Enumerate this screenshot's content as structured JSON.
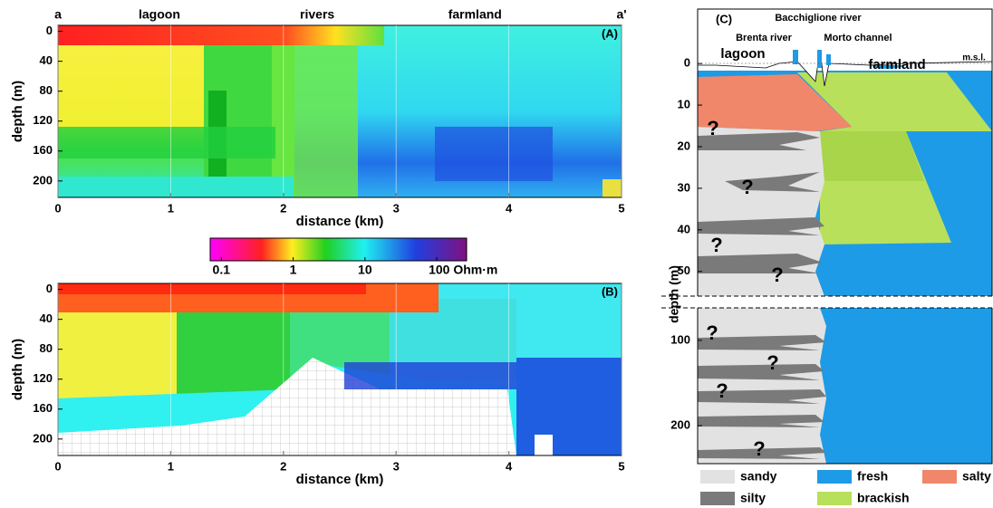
{
  "chart_data": [
    {
      "type": "heatmap",
      "panel": "(A)",
      "top_labels": [
        "a",
        "lagoon",
        "rivers",
        "farmland",
        "a'"
      ],
      "xlabel": "distance (km)",
      "ylabel": "depth (m)",
      "xlim": [
        0,
        5
      ],
      "xticks": [
        0,
        1,
        2,
        3,
        4,
        5
      ],
      "ylim": [
        -8,
        222
      ],
      "yticks": [
        0,
        40,
        80,
        120,
        160,
        200
      ]
    },
    {
      "type": "heatmap",
      "panel": "(B)",
      "xlabel": "distance (km)",
      "ylabel": "depth (m)",
      "xlim": [
        0,
        5
      ],
      "xticks": [
        0,
        1,
        2,
        3,
        4,
        5
      ],
      "ylim": [
        -8,
        222
      ],
      "yticks": [
        0,
        40,
        80,
        120,
        160,
        200
      ]
    },
    {
      "type": "colorbar",
      "log": true,
      "clim": [
        0.07,
        260
      ],
      "ticks": [
        0.1,
        1,
        10,
        {
          "value": 100,
          "label": "100 Ohm·m"
        }
      ]
    },
    {
      "type": "cross-section",
      "panel": "(C)",
      "annotations": [
        "Brenta river",
        "Bacchiglione river",
        "Morto channel",
        "lagoon",
        "farmland",
        "m.s.l."
      ],
      "ylabel": "depth (m)",
      "ylim_upper": [
        -7,
        55.5
      ],
      "yticks_upper": [
        0,
        10,
        20,
        30,
        40,
        50
      ],
      "ylim_lower": [
        62,
        237
      ],
      "yticks_lower": [
        100,
        200
      ],
      "legend": [
        {
          "name": "sandy",
          "color": "#e2e2e2"
        },
        {
          "name": "fresh",
          "color": "#1e9be6"
        },
        {
          "name": "salty",
          "color": "#f0876a"
        },
        {
          "name": "silty",
          "color": "#7a7a7a"
        },
        {
          "name": "brackish",
          "color": "#b8e05a"
        }
      ],
      "question_marks": [
        {
          "text": "?",
          "color": "#f05a28"
        },
        {
          "text": "?",
          "color": "#f05a28"
        },
        {
          "text": "?",
          "color": "#f05a28"
        },
        {
          "text": "?",
          "color": "#a8d830"
        },
        {
          "text": "?",
          "color": "#a8d830"
        },
        {
          "text": "?",
          "color": "#2a8ee0"
        },
        {
          "text": "?",
          "color": "#2a8ee0"
        },
        {
          "text": "?",
          "color": "#2a8ee0"
        }
      ]
    }
  ]
}
